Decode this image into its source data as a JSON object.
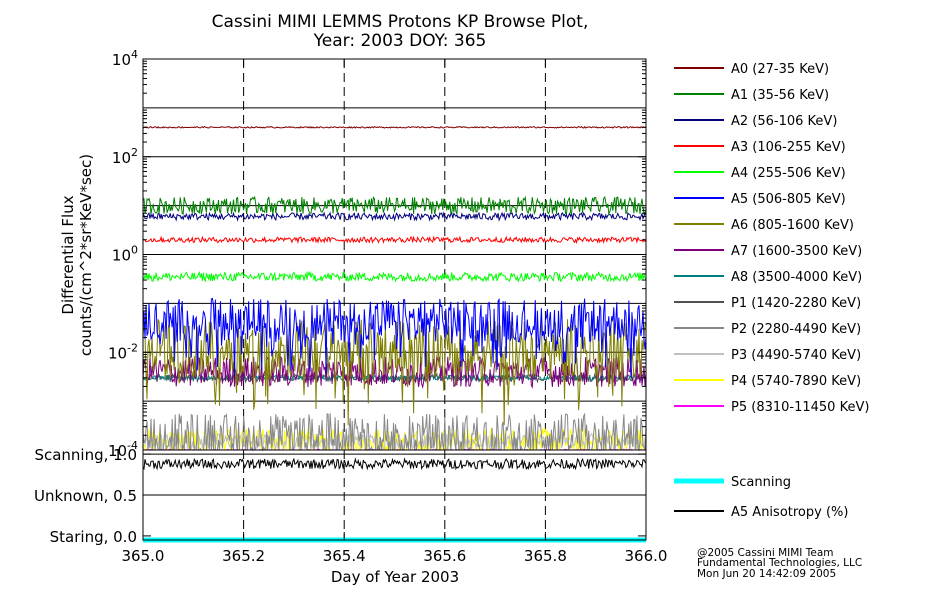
{
  "title_line1": "Cassini MIMI LEMMS Protons KP Browse Plot,",
  "title_line2": "Year: 2003 DOY: 365",
  "credits": [
    "@2005 Cassini MIMI Team",
    "Fundamental Technologies, LLC",
    "Mon Jun 20 14:42:09 2005"
  ],
  "chart_data": [
    {
      "type": "line",
      "title": "Cassini MIMI LEMMS Protons KP Browse Plot, Year: 2003 DOY: 365",
      "ylabel_line1": "Differential Flux",
      "ylabel_line2": "counts/(cm^2*sr*KeV*sec)",
      "yscale": "log",
      "ylim": [
        0.0001,
        10000
      ],
      "xlim": [
        365.0,
        366.0
      ],
      "ytick_values": [
        0.0001,
        0.01,
        1,
        100,
        10000
      ],
      "ytick_labels": [
        {
          "base": "10",
          "exp": "-4"
        },
        {
          "base": "10",
          "exp": "-2"
        },
        {
          "base": "10",
          "exp": "0"
        },
        {
          "base": "10",
          "exp": "2"
        },
        {
          "base": "10",
          "exp": "4"
        }
      ],
      "grid_vertical_at": [
        365.2,
        365.4,
        365.6,
        365.8
      ],
      "legend_position": "right",
      "series": [
        {
          "name": "A0 (27-35 KeV)",
          "color": "#800000",
          "median": 400,
          "spread": 0.04,
          "noise": 0.35
        },
        {
          "name": "A1 (35-56 KeV)",
          "color": "#007f00",
          "median": 10,
          "spread": 0.25,
          "noise": 0.7
        },
        {
          "name": "A2 (56-106 KeV)",
          "color": "#00007f",
          "median": 6,
          "spread": 0.12,
          "noise": 0.6
        },
        {
          "name": "A3 (106-255 KeV)",
          "color": "#ff0000",
          "median": 2,
          "spread": 0.09,
          "noise": 0.6
        },
        {
          "name": "A4 (255-506 KeV)",
          "color": "#00ff00",
          "median": 0.35,
          "spread": 0.14,
          "noise": 0.65
        },
        {
          "name": "A5 (506-805 KeV)",
          "color": "#0000ff",
          "median": 0.045,
          "spread": 0.45,
          "noise": 1,
          "spiky": true
        },
        {
          "name": "A6 (805-1600 KeV)",
          "color": "#7f7f00",
          "median": 0.012,
          "spread": 0.6,
          "noise": 1,
          "spiky": true
        },
        {
          "name": "A7 (1600-3500 KeV)",
          "color": "#7f007f",
          "median": 0.004,
          "spread": 0.35,
          "noise": 0.9
        },
        {
          "name": "A8 (3500-4000 KeV)",
          "color": "#007f7f",
          "median": 0.003,
          "spread": 0.1,
          "noise": 0.5
        },
        {
          "name": "P1 (1420-2280 KeV)",
          "color": "#505050",
          "median": 0.003,
          "spread": 0.12,
          "noise": 0.7
        },
        {
          "name": "P2 (2280-4490 KeV)",
          "color": "#888888",
          "median": 0.0002,
          "spread": 0.45,
          "noise": 1,
          "spiky": true
        },
        {
          "name": "P3 (4490-5740 KeV)",
          "color": "#c0c0c0",
          "median": 0.00015,
          "spread": 0.2,
          "noise": 0.8
        },
        {
          "name": "P4 (5740-7890 KeV)",
          "color": "#ffff00",
          "median": 0.00015,
          "spread": 0.3,
          "noise": 0.9
        },
        {
          "name": "P5 (8310-11450 KeV)",
          "color": "#ff00ff",
          "median": 0.0001,
          "spread": 0.05,
          "noise": 0.3
        }
      ]
    },
    {
      "type": "line",
      "ytick_labels": [
        "Scanning, 1.0",
        "Unknown, 0.5",
        "Staring, 0.0"
      ],
      "ytick_values": [
        1.0,
        0.5,
        0.0
      ],
      "ylim": [
        -0.05,
        1.05
      ],
      "xlim": [
        365.0,
        366.0
      ],
      "xlabel": "Day of Year 2003",
      "xtick_labels": [
        "365.0",
        "365.2",
        "365.4",
        "365.6",
        "365.8",
        "366.0"
      ],
      "xtick_values": [
        365.0,
        365.2,
        365.4,
        365.6,
        365.8,
        366.0
      ],
      "legend_position": "right",
      "series": [
        {
          "name": "Scanning",
          "color": "#00ffff",
          "value": 0.0
        },
        {
          "name": "A5 Anisotropy (%)",
          "color": "#000000",
          "median": 0.88,
          "spread": 0.06
        }
      ]
    }
  ]
}
